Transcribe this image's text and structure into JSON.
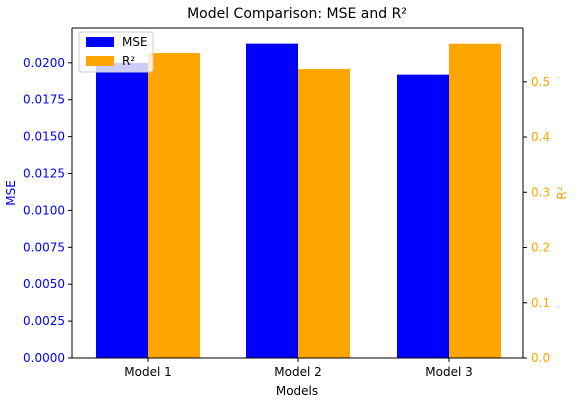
{
  "chart_data": {
    "type": "bar",
    "title": "Model Comparison: MSE and R²",
    "xlabel": "Models",
    "categories": [
      "Model 1",
      "Model 2",
      "Model 3"
    ],
    "series": [
      {
        "name": "MSE",
        "axis": "left",
        "color": "#0000ff",
        "values": [
          0.02,
          0.0213,
          0.0192
        ]
      },
      {
        "name": "R²",
        "axis": "right",
        "color": "#ffa500",
        "values": [
          0.552,
          0.523,
          0.569
        ]
      }
    ],
    "y_left": {
      "label": "MSE",
      "color": "#0000ff",
      "ylim": [
        0,
        0.02236
      ],
      "ticks": [
        "0.0000",
        "0.0025",
        "0.0050",
        "0.0075",
        "0.0100",
        "0.0125",
        "0.0150",
        "0.0175",
        "0.0200"
      ]
    },
    "y_right": {
      "label": "R²",
      "color": "#ffa500",
      "ylim": [
        0,
        0.5974
      ],
      "ticks": [
        "0.0",
        "0.1",
        "0.2",
        "0.3",
        "0.4",
        "0.5"
      ]
    },
    "legend": {
      "placement": "top-left",
      "entries": [
        {
          "label": "MSE",
          "color": "#0000ff"
        },
        {
          "label": "R²",
          "color": "#ffa500"
        }
      ]
    },
    "grid": false
  }
}
